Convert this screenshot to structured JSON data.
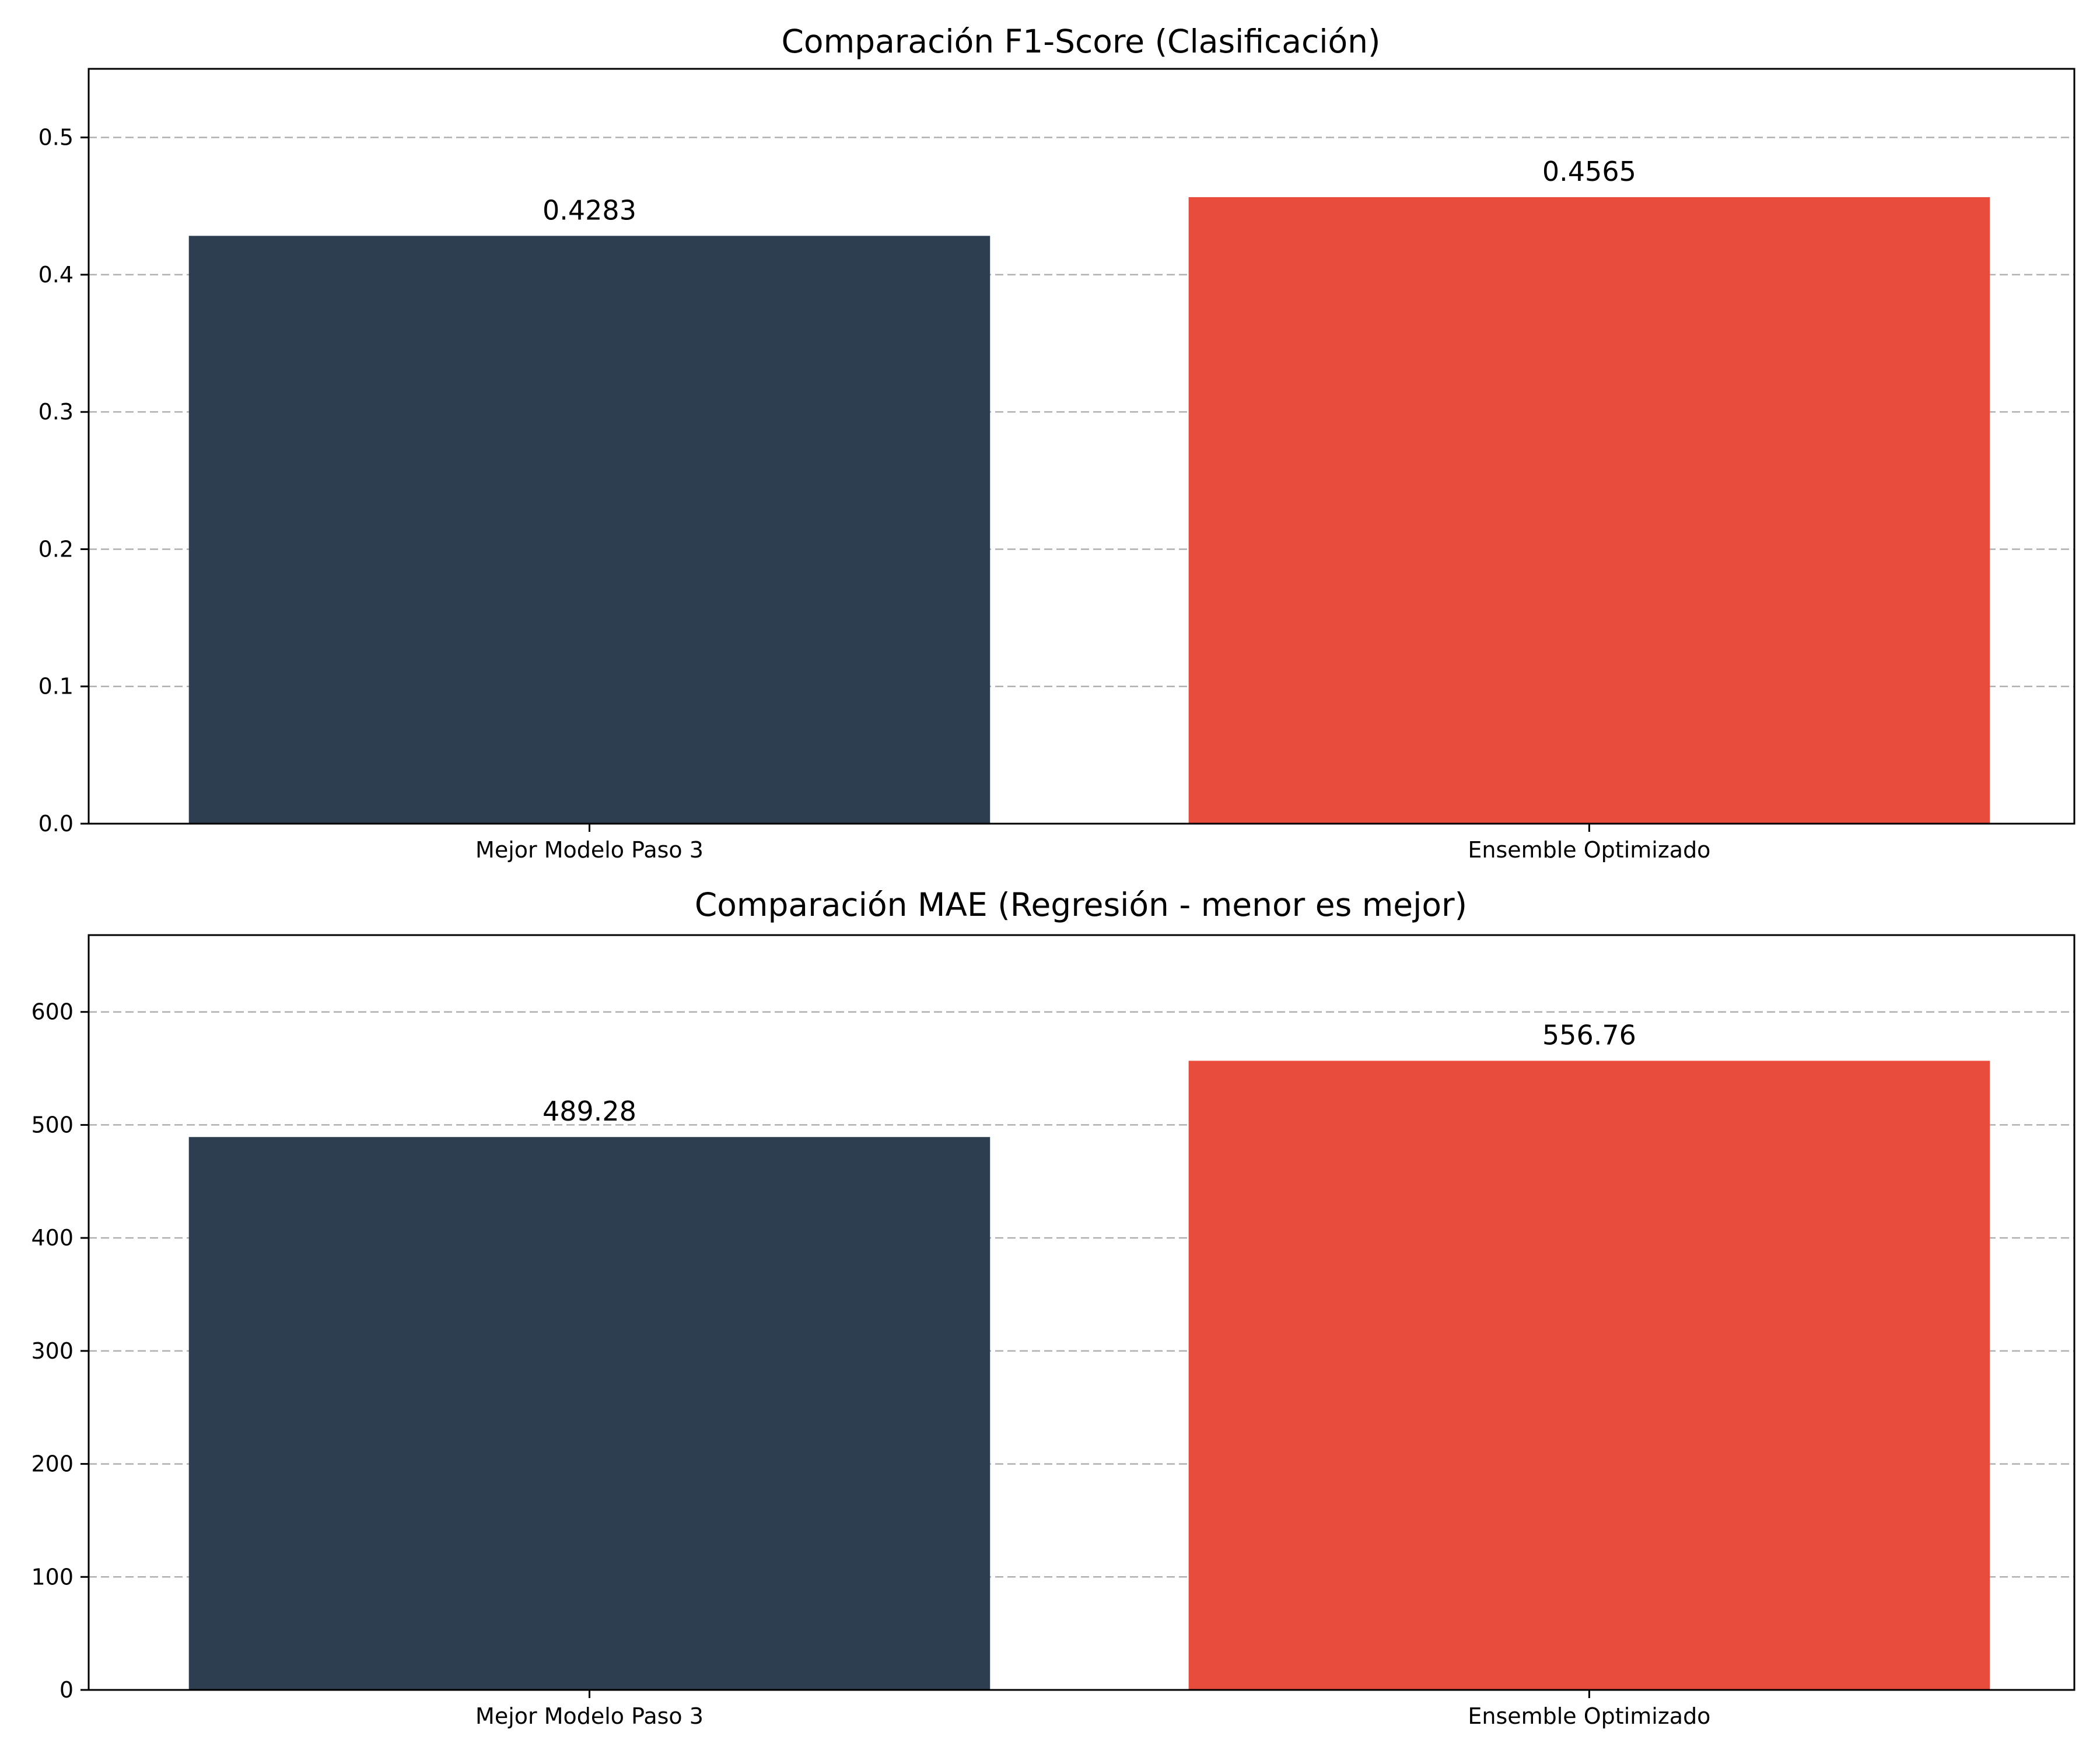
{
  "chart_data": [
    {
      "type": "bar",
      "title": "Comparación F1-Score (Clasificación)",
      "xlabel": "",
      "ylabel": "",
      "categories": [
        "Mejor Modelo Paso 3",
        "Ensemble Optimizado"
      ],
      "values": [
        0.4283,
        0.4565
      ],
      "value_labels": [
        "0.4283",
        "0.4565"
      ],
      "colors": [
        "#2c3e50",
        "#e74c3c"
      ],
      "ylim": [
        0,
        0.55
      ],
      "yticks": [
        0.0,
        0.1,
        0.2,
        0.3,
        0.4,
        0.5
      ],
      "ytick_labels": [
        "0.0",
        "0.1",
        "0.2",
        "0.3",
        "0.4",
        "0.5"
      ],
      "grid": "y"
    },
    {
      "type": "bar",
      "title": "Comparación MAE (Regresión - menor es mejor)",
      "xlabel": "",
      "ylabel": "",
      "categories": [
        "Mejor Modelo Paso 3",
        "Ensemble Optimizado"
      ],
      "values": [
        489.28,
        556.76
      ],
      "value_labels": [
        "489.28",
        "556.76"
      ],
      "colors": [
        "#2c3e50",
        "#e74c3c"
      ],
      "ylim": [
        0,
        668
      ],
      "yticks": [
        0,
        100,
        200,
        300,
        400,
        500,
        600
      ],
      "ytick_labels": [
        "0",
        "100",
        "200",
        "300",
        "400",
        "500",
        "600"
      ],
      "grid": "y"
    }
  ]
}
